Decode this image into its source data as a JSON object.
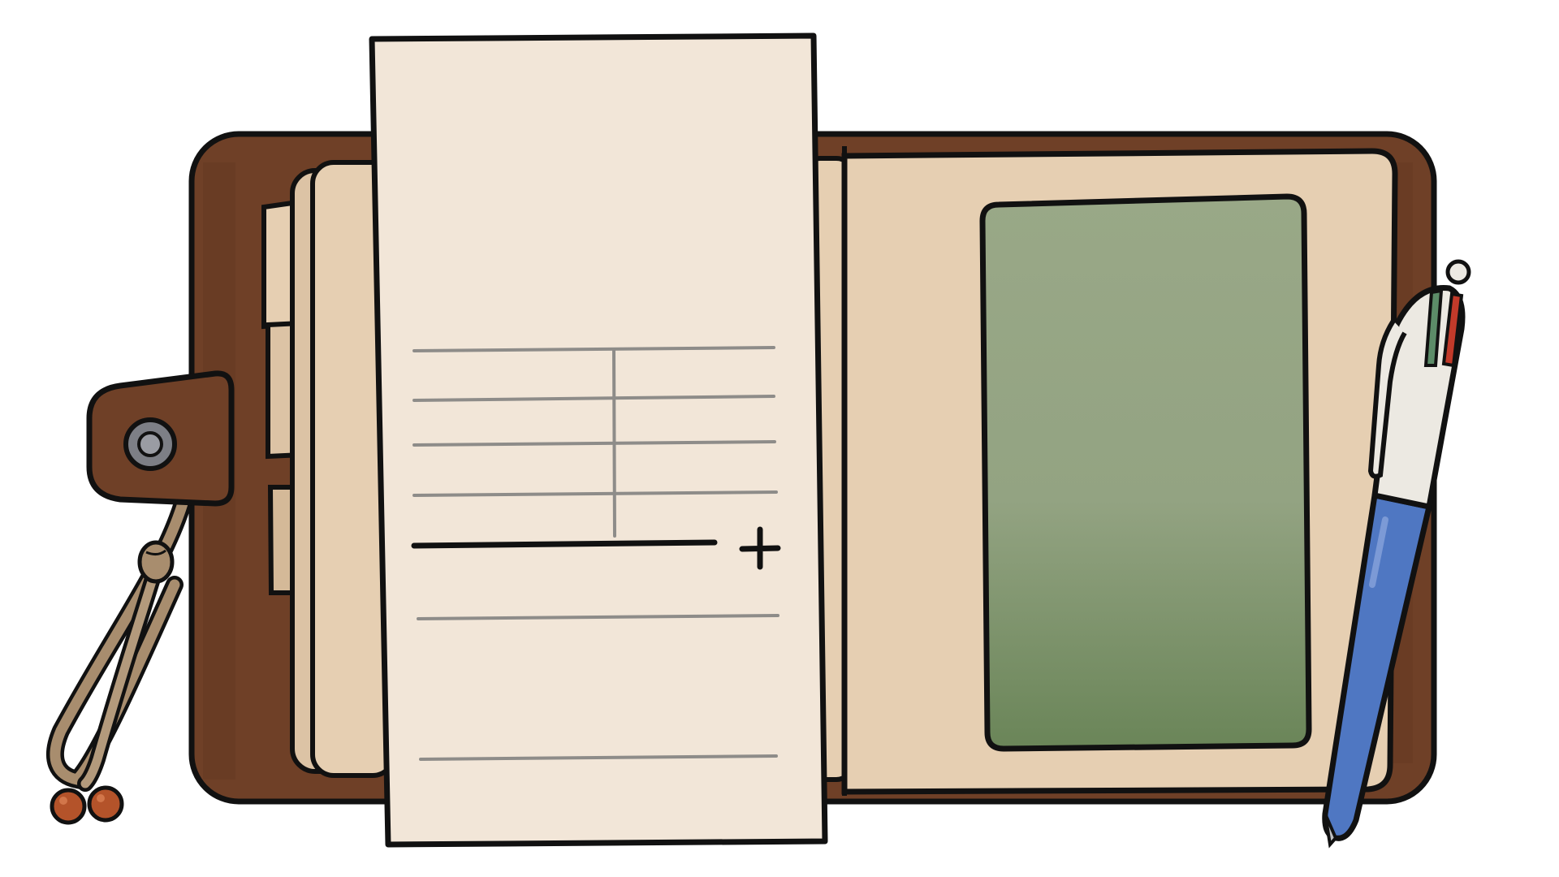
{
  "controls": {
    "add_icon": "plus-icon",
    "add_icon_glyph": "+"
  },
  "colors": {
    "background": "#ffffff",
    "outline": "#111111",
    "leather": "#6f4027",
    "leather_dark": "#5a3220",
    "inner_paper": "#e6cfb2",
    "page_stack": "#e9d8bf",
    "note_sheet": "#f2e6d8",
    "note_rule_line": "#8e8c89",
    "photo_green_top": "#99a887",
    "photo_green_bottom": "#6a8558",
    "snap_button": "#7d7f86",
    "strap": "#a88d6e",
    "beads": "#b4532a",
    "pen_body": "#4f77c2",
    "pen_cap": "#ece9e2",
    "pen_green_ink": "#5c8c68",
    "pen_red_ink": "#c23a2a"
  },
  "note_sheet": {
    "table_rows": 4,
    "table_columns": 2,
    "writing_lines": 2
  }
}
